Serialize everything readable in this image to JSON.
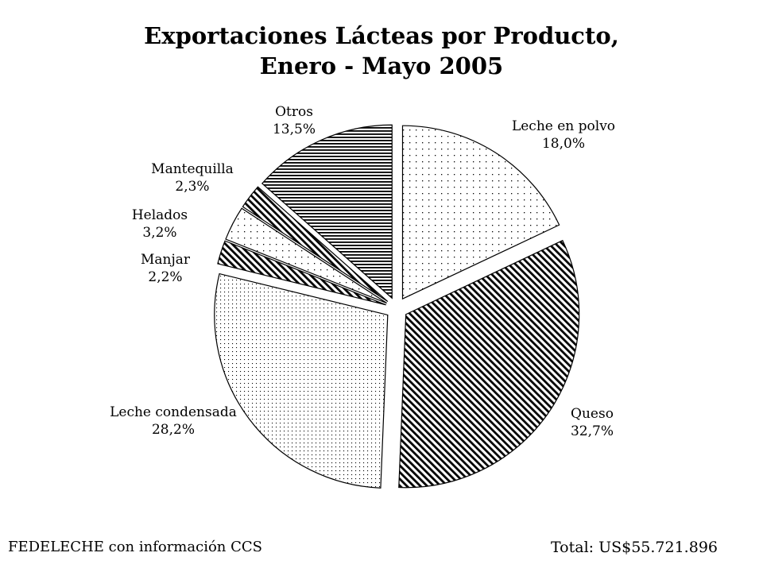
{
  "chart_data": {
    "type": "pie",
    "title_line1": "Exportaciones Lácteas por Producto,",
    "title_line2": "Enero - Mayo 2005",
    "slices": [
      {
        "name": "Leche en polvo",
        "value": 18.0,
        "label": "18,0%",
        "pattern": "dots-sparse"
      },
      {
        "name": "Queso",
        "value": 32.7,
        "label": "32,7%",
        "pattern": "diagonal-dense"
      },
      {
        "name": "Leche condensada",
        "value": 28.2,
        "label": "28,2%",
        "pattern": "dots-fine"
      },
      {
        "name": "Manjar",
        "value": 2.2,
        "label": "2,2%",
        "pattern": "diagonal-dense"
      },
      {
        "name": "Helados",
        "value": 3.2,
        "label": "3,2%",
        "pattern": "dots-sparse"
      },
      {
        "name": "Mantequilla",
        "value": 2.3,
        "label": "2,3%",
        "pattern": "diagonal-dense"
      },
      {
        "name": "Otros",
        "value": 13.5,
        "label": "13,5%",
        "pattern": "horizontal-lines"
      }
    ],
    "exploded": true,
    "start": "12 o'clock",
    "direction": "clockwise",
    "legend": "none (labels beside slices)"
  },
  "footer": {
    "source": "FEDELECHE con información CCS",
    "total": "Total: US$55.721.896"
  },
  "colors": {
    "background": "#ffffff",
    "ink": "#000000"
  }
}
